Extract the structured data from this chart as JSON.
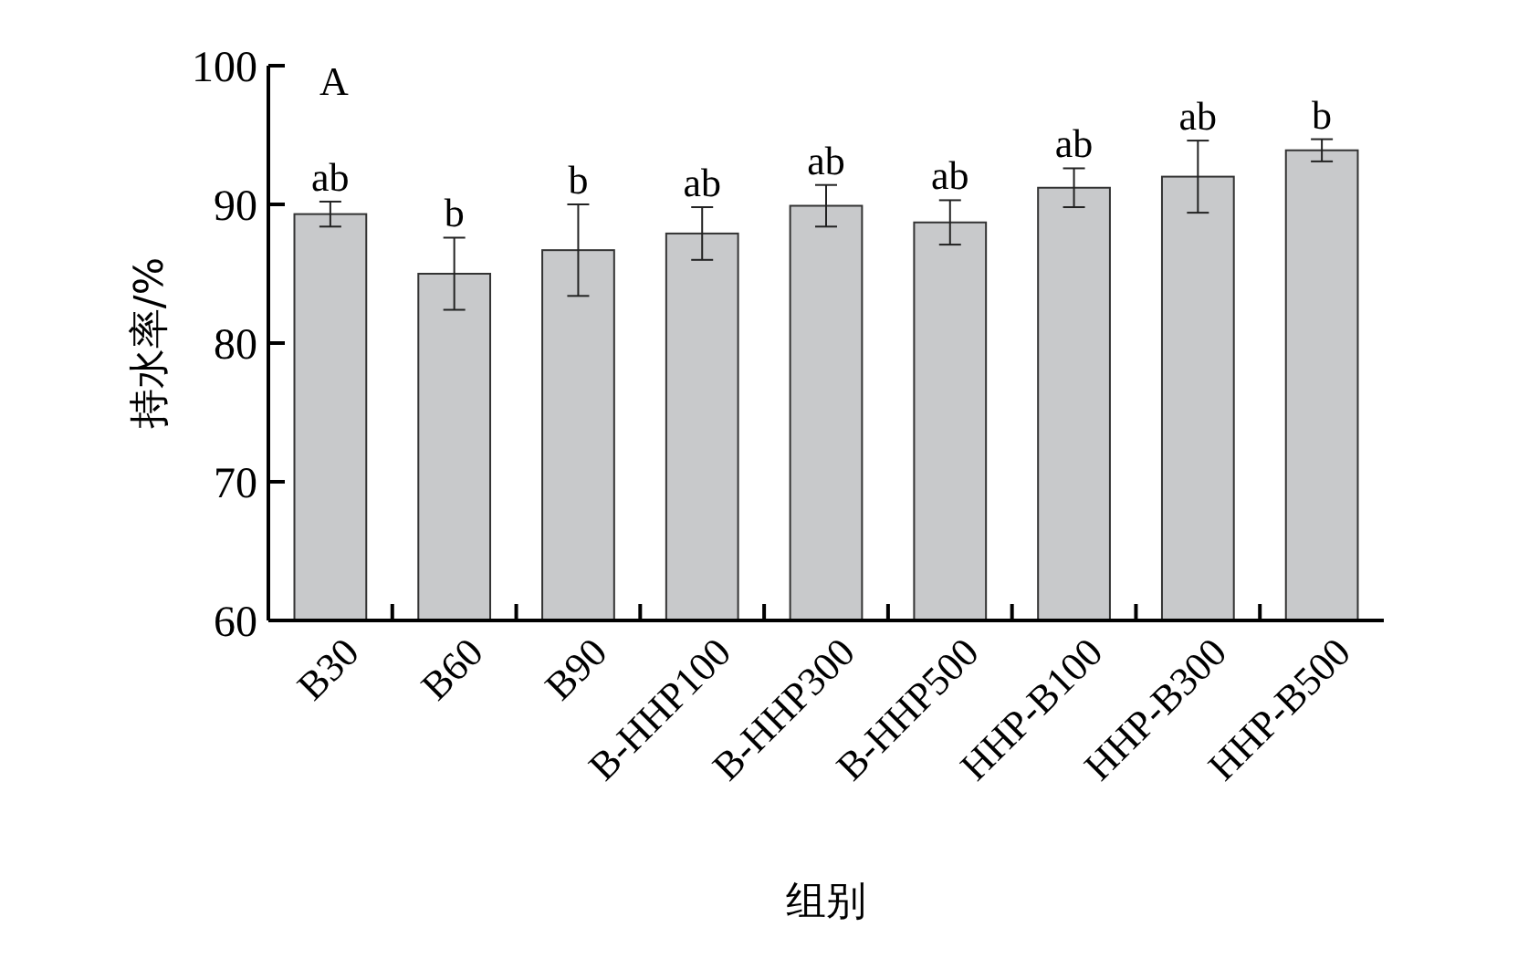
{
  "chart_data": {
    "type": "bar",
    "xlabel": "组别",
    "ylabel": "持水率/%",
    "categories": [
      "B30",
      "B60",
      "B90",
      "B-HHP100",
      "B-HHP300",
      "B-HHP500",
      "HHP-B100",
      "HHP-B300",
      "HHP-B500"
    ],
    "values": [
      89.3,
      85.0,
      86.7,
      87.9,
      89.9,
      88.7,
      91.2,
      92.0,
      93.9
    ],
    "errors": [
      0.9,
      2.6,
      3.3,
      1.9,
      1.5,
      1.6,
      1.4,
      2.6,
      0.8
    ],
    "color": "#c8c9cb",
    "ylim": [
      60,
      100
    ],
    "yticks": [
      60,
      70,
      80,
      90,
      100
    ],
    "grid": false,
    "annotations": [
      "A",
      {
        "text": "ab",
        "x": "B30",
        "y": 89.3
      },
      {
        "text": "b",
        "x": "B60",
        "y": 85.0
      },
      {
        "text": "b",
        "x": "B90",
        "y": 86.7
      },
      {
        "text": "ab",
        "x": "B-HHP100",
        "y": 87.9
      },
      {
        "text": "ab",
        "x": "B-HHP300",
        "y": 89.9
      },
      {
        "text": "ab",
        "x": "B-HHP500",
        "y": 88.7
      },
      {
        "text": "ab",
        "x": "HHP-B100",
        "y": 91.2
      },
      {
        "text": "ab",
        "x": "HHP-B300",
        "y": 92.0
      },
      {
        "text": "b",
        "x": "HHP-B500",
        "y": 93.9
      }
    ]
  }
}
